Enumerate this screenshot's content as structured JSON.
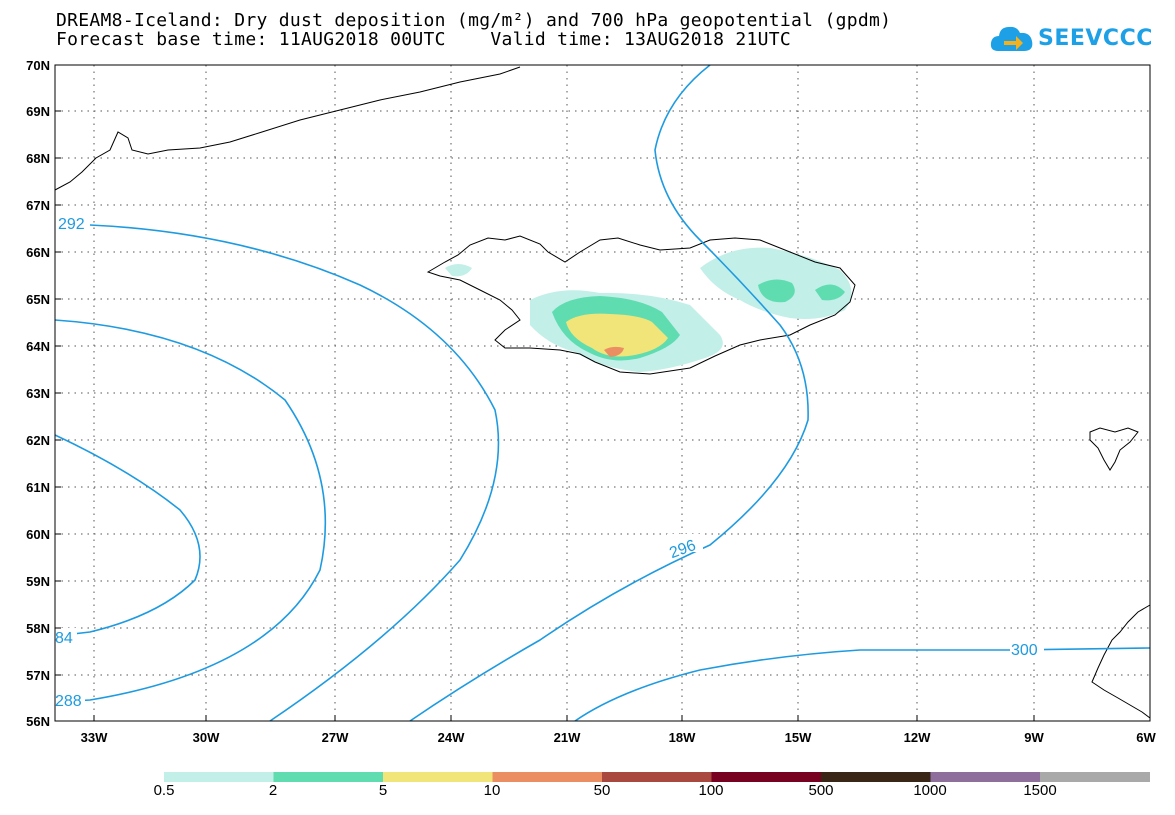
{
  "header": {
    "title_line1": "DREAM8-Iceland: Dry dust deposition (mg/m²) and 700 hPa geopotential (gpdm)",
    "title_line2": "Forecast base time: 11AUG2018 00UTC    Valid time: 13AUG2018 21UTC",
    "logo_text": "SEEVCCC"
  },
  "map": {
    "lat_labels": [
      "70N",
      "69N",
      "68N",
      "67N",
      "66N",
      "65N",
      "64N",
      "63N",
      "62N",
      "61N",
      "60N",
      "59N",
      "58N",
      "57N",
      "56N"
    ],
    "lon_labels": [
      "33W",
      "30W",
      "27W",
      "24W",
      "21W",
      "18W",
      "15W",
      "12W",
      "9W",
      "6W"
    ],
    "contour_labels": [
      "292",
      "296",
      "300",
      "84",
      "288"
    ],
    "colors": {
      "contour": "#1e9be0",
      "coast": "#000000",
      "grid": "#555555"
    }
  },
  "colorbar": {
    "labels": [
      "0.5",
      "2",
      "5",
      "10",
      "50",
      "100",
      "500",
      "1000",
      "1500"
    ],
    "colors": [
      "#c2efe8",
      "#5fdcb0",
      "#f1e57a",
      "#eb8f62",
      "#a8483f",
      "#780021",
      "#3a2616",
      "#8e6f9b",
      "#a9a9a9"
    ]
  }
}
